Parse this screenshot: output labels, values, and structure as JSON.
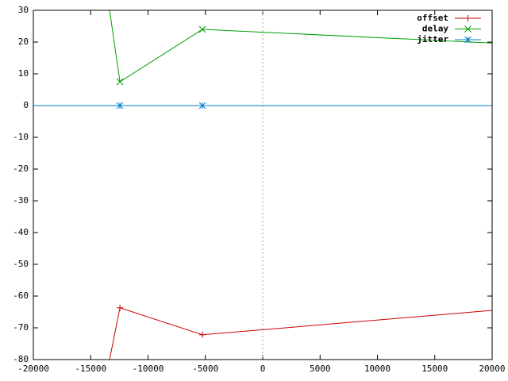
{
  "chart_data": {
    "type": "line",
    "xlim": [
      -20000,
      20000
    ],
    "xticks": [
      -20000,
      -15000,
      -10000,
      -5000,
      0,
      5000,
      10000,
      15000,
      20000
    ],
    "ylim": [
      -80,
      30
    ],
    "yticks": [
      -80,
      -70,
      -60,
      -50,
      -40,
      -30,
      -20,
      -10,
      0,
      10,
      20,
      30
    ],
    "legend": "top-right",
    "zero_axis": true,
    "series": [
      {
        "name": "offset",
        "color": "#cc0000",
        "marker": "plus",
        "x": [
          -13350,
          -12450,
          -5260,
          20000
        ],
        "values": [
          -80,
          -63.7,
          -72.2,
          -64.5
        ]
      },
      {
        "name": "delay",
        "color": "#00a000",
        "marker": "cross",
        "x": [
          -13350,
          -12450,
          -5260,
          20000
        ],
        "values": [
          30,
          7.5,
          24,
          19.7
        ]
      },
      {
        "name": "jitter",
        "color": "#0080cc",
        "marker": "star",
        "x": [
          -20000,
          -12450,
          -5260,
          20000
        ],
        "values": [
          0,
          0,
          0,
          0
        ]
      }
    ]
  }
}
